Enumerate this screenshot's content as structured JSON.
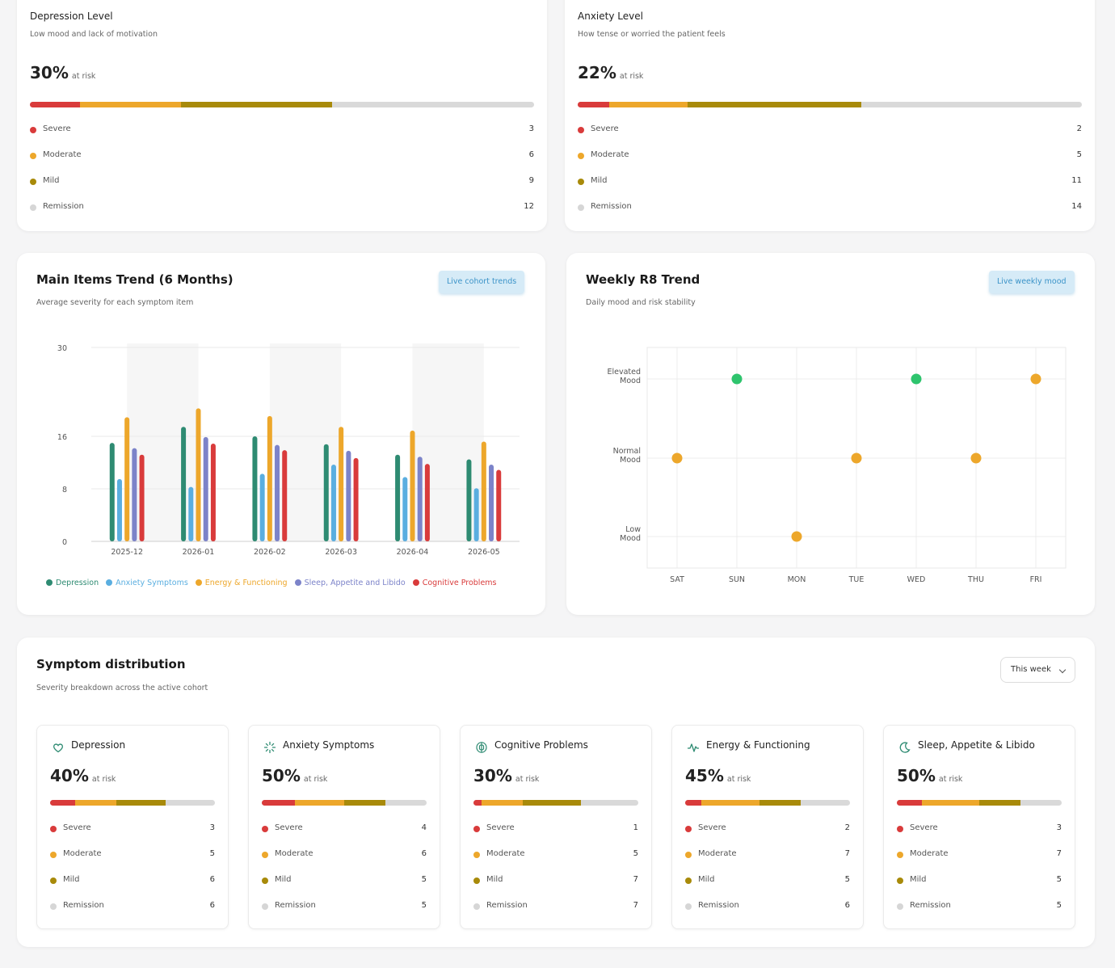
{
  "colors": {
    "severe": "#d93b3b",
    "moderate": "#eda72b",
    "mild": "#a88a0a",
    "remission": "#d6d6d6",
    "green": "#2ec46d"
  },
  "depression_card": {
    "title": "Depression Level",
    "subtitle": "Low mood and lack of motivation",
    "percent": "30%",
    "at_risk": "at risk",
    "bar_fractions": [
      0.1,
      0.2,
      0.3
    ],
    "legend": [
      {
        "label": "Severe",
        "count": "3"
      },
      {
        "label": "Moderate",
        "count": "6"
      },
      {
        "label": "Mild",
        "count": "9"
      },
      {
        "label": "Remission",
        "count": "12"
      }
    ]
  },
  "anxiety_card": {
    "title": "Anxiety Level",
    "subtitle": "How tense or worried the patient feels",
    "percent": "22%",
    "at_risk": "at risk",
    "bar_fractions": [
      0.0625,
      0.156,
      0.344
    ],
    "legend": [
      {
        "label": "Severe",
        "count": "2"
      },
      {
        "label": "Moderate",
        "count": "5"
      },
      {
        "label": "Mild",
        "count": "11"
      },
      {
        "label": "Remission",
        "count": "14"
      }
    ]
  },
  "trend_card": {
    "title": "Main Items Trend (6 Months)",
    "subtitle": "Average severity for each symptom item",
    "pill": "Live cohort trends"
  },
  "weekly_card": {
    "title": "Weekly R8 Trend",
    "subtitle": "Daily mood and risk stability",
    "pill": "Live weekly mood"
  },
  "chart_data": [
    {
      "type": "bar",
      "title": "Main Items Trend (6 Months)",
      "categories": [
        "2025-12",
        "2026-01",
        "2026-02",
        "2026-03",
        "2026-04",
        "2026-05"
      ],
      "y_ticks": [
        "0",
        "8",
        "16",
        "30"
      ],
      "ylim": [
        0,
        30
      ],
      "series": [
        {
          "name": "Depression",
          "color": "#2e8b72",
          "values": [
            15,
            17.5,
            16,
            14.8,
            13.2,
            12.5
          ]
        },
        {
          "name": "Anxiety Symptoms",
          "color": "#5aaee0",
          "values": [
            9.5,
            8.3,
            10.3,
            11.7,
            9.8,
            8.1
          ]
        },
        {
          "name": "Energy & Functioning",
          "color": "#eda72b",
          "values": [
            19,
            20.4,
            19.2,
            17.5,
            16.9,
            15.2
          ]
        },
        {
          "name": "Sleep, Appetite and Libido",
          "color": "#7c83c9",
          "values": [
            14.2,
            15.9,
            14.7,
            13.8,
            12.9,
            11.7
          ]
        },
        {
          "name": "Cognitive Problems",
          "color": "#d93b3b",
          "values": [
            13.2,
            14.9,
            13.9,
            12.7,
            11.8,
            10.9
          ]
        }
      ],
      "legend_placement": "bottom"
    },
    {
      "type": "scatter",
      "title": "Weekly R8 Trend",
      "categories": [
        "SAT",
        "SUN",
        "MON",
        "TUE",
        "WED",
        "THU",
        "FRI"
      ],
      "y_levels": [
        "Low Mood",
        "Normal Mood",
        "Elevated Mood"
      ],
      "values": [
        "Normal Mood",
        "Elevated Mood",
        "Low Mood",
        "Normal Mood",
        "Elevated Mood",
        "Normal Mood",
        "Elevated Mood"
      ],
      "grid": true
    }
  ],
  "symptoms": {
    "title": "Symptom distribution",
    "subtitle": "Severity breakdown across the active cohort",
    "dropdown": "This week",
    "cards": [
      {
        "icon": "heart-icon",
        "title": "Depression",
        "percent": "40%",
        "at_risk": "at risk",
        "bar_fractions": [
          0.15,
          0.25,
          0.3
        ],
        "legend": [
          {
            "label": "Severe",
            "count": "3"
          },
          {
            "label": "Moderate",
            "count": "5"
          },
          {
            "label": "Mild",
            "count": "6"
          },
          {
            "label": "Remission",
            "count": "6"
          }
        ]
      },
      {
        "icon": "burst-icon",
        "title": "Anxiety Symptoms",
        "percent": "50%",
        "at_risk": "at risk",
        "bar_fractions": [
          0.2,
          0.3,
          0.25
        ],
        "legend": [
          {
            "label": "Severe",
            "count": "4"
          },
          {
            "label": "Moderate",
            "count": "6"
          },
          {
            "label": "Mild",
            "count": "5"
          },
          {
            "label": "Remission",
            "count": "5"
          }
        ]
      },
      {
        "icon": "brain-icon",
        "title": "Cognitive Problems",
        "percent": "30%",
        "at_risk": "at risk",
        "bar_fractions": [
          0.05,
          0.25,
          0.35
        ],
        "legend": [
          {
            "label": "Severe",
            "count": "1"
          },
          {
            "label": "Moderate",
            "count": "5"
          },
          {
            "label": "Mild",
            "count": "7"
          },
          {
            "label": "Remission",
            "count": "7"
          }
        ]
      },
      {
        "icon": "pulse-icon",
        "title": "Energy & Functioning",
        "percent": "45%",
        "at_risk": "at risk",
        "bar_fractions": [
          0.1,
          0.35,
          0.25
        ],
        "legend": [
          {
            "label": "Severe",
            "count": "2"
          },
          {
            "label": "Moderate",
            "count": "7"
          },
          {
            "label": "Mild",
            "count": "5"
          },
          {
            "label": "Remission",
            "count": "6"
          }
        ]
      },
      {
        "icon": "moon-icon",
        "title": "Sleep, Appetite & Libido",
        "percent": "50%",
        "at_risk": "at risk",
        "bar_fractions": [
          0.15,
          0.35,
          0.25
        ],
        "legend": [
          {
            "label": "Severe",
            "count": "3"
          },
          {
            "label": "Moderate",
            "count": "7"
          },
          {
            "label": "Mild",
            "count": "5"
          },
          {
            "label": "Remission",
            "count": "5"
          }
        ]
      }
    ]
  }
}
